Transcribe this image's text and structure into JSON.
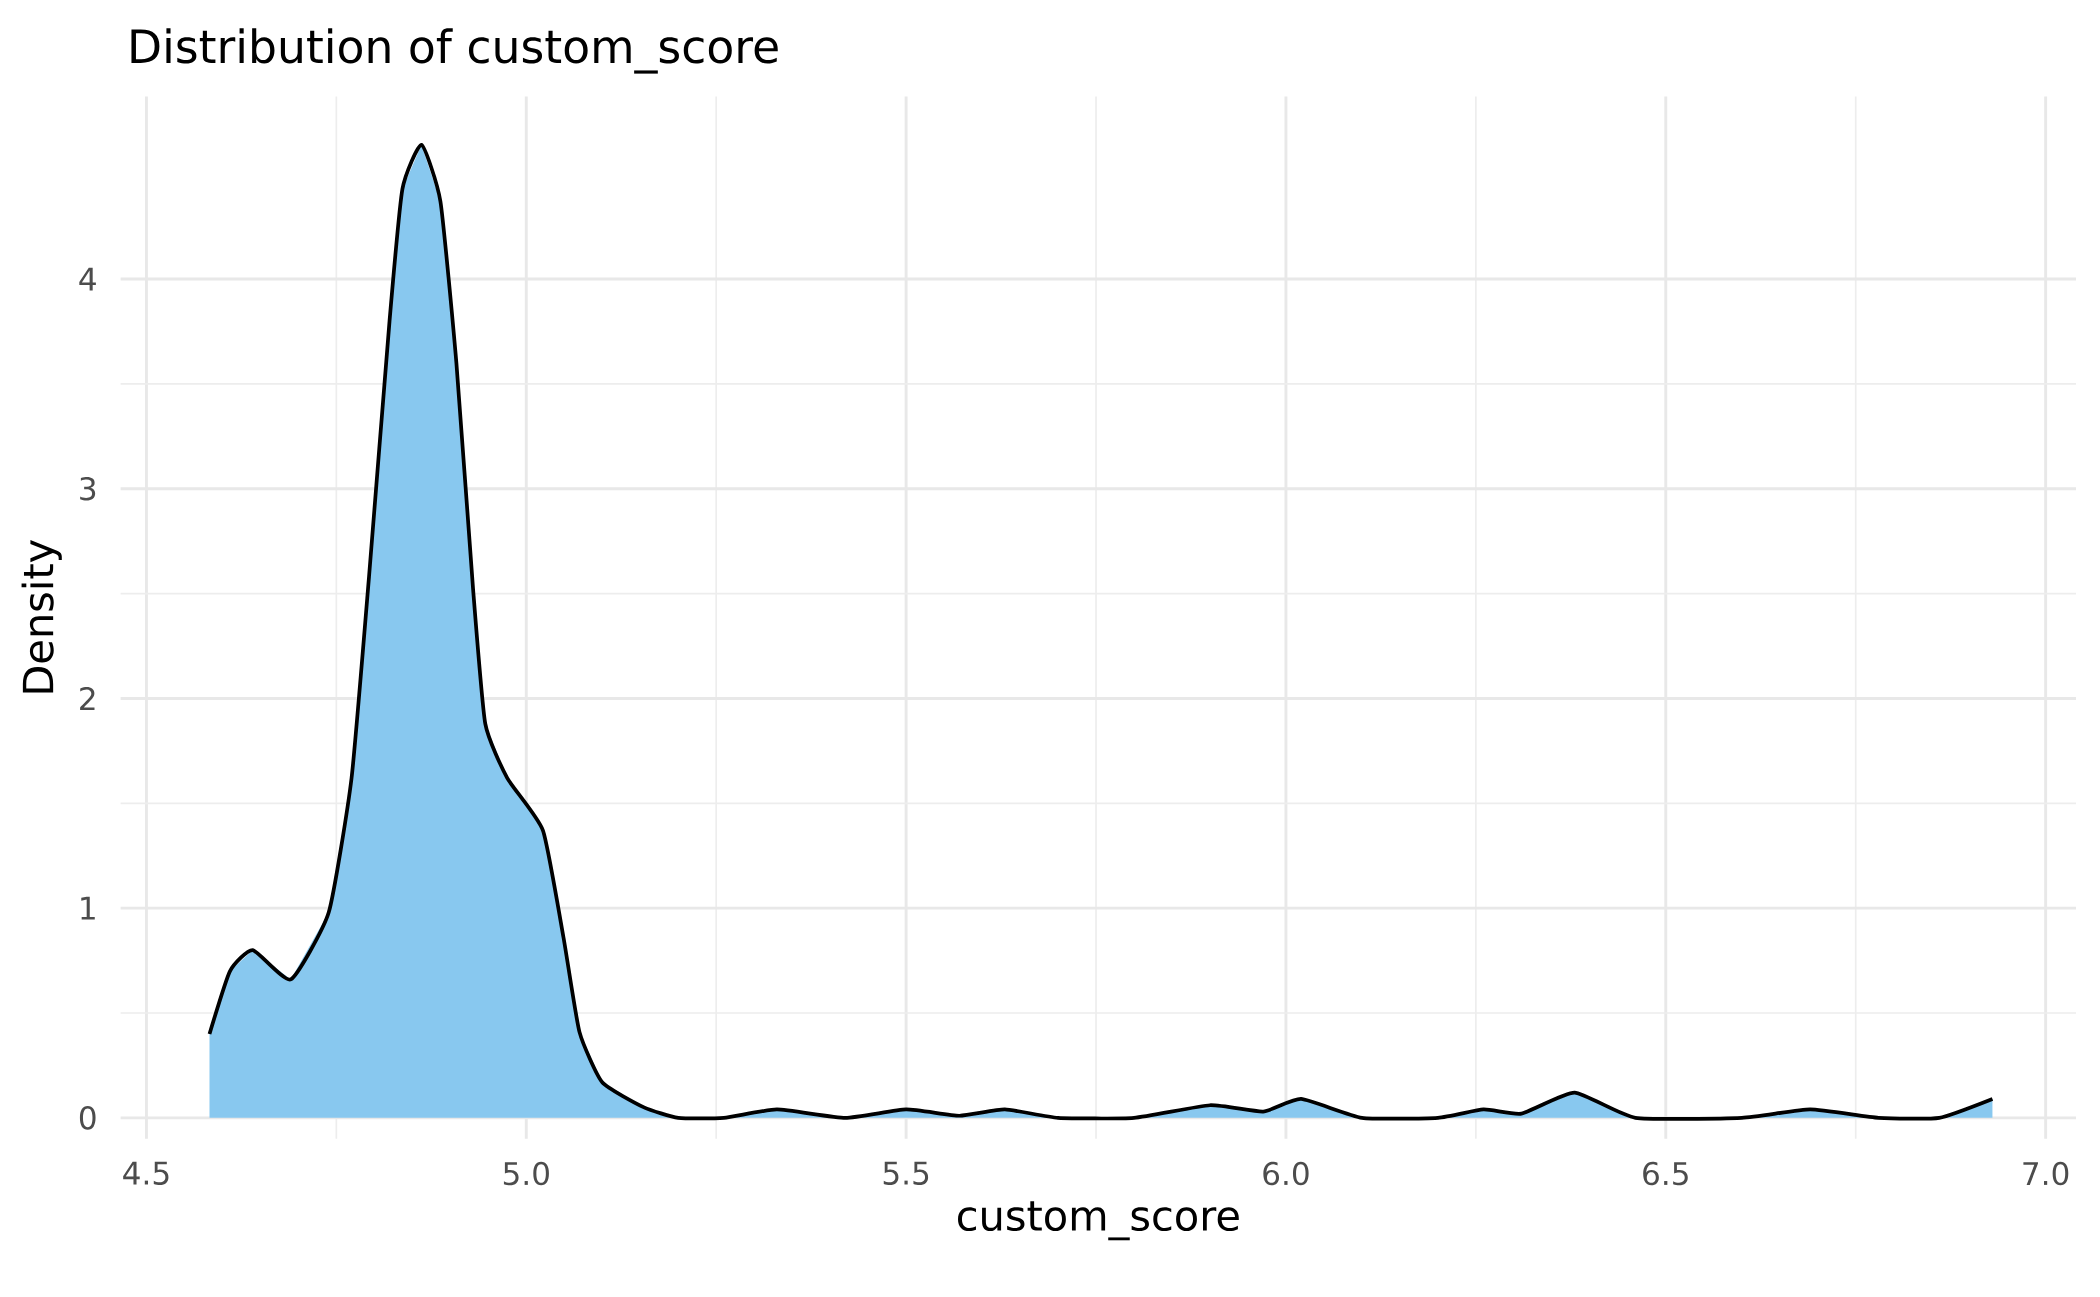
{
  "chart_data": {
    "type": "area",
    "title": "Distribution of custom_score",
    "xlabel": "custom_score",
    "ylabel": "Density",
    "xlim": [
      4.466,
      7.04
    ],
    "ylim": [
      -0.1,
      4.87
    ],
    "xticks": [
      4.5,
      {
        "value": 5,
        "label": "5.0"
      },
      5.5,
      {
        "value": 6,
        "label": "6.0"
      },
      6.5,
      {
        "value": 7,
        "label": "7.0"
      }
    ],
    "yticks": [
      0,
      1,
      2,
      3,
      4
    ],
    "grid": true,
    "series": [
      {
        "color": "#88c8ef",
        "x": [
          4.583,
          4.61,
          4.64,
          4.69,
          4.74,
          4.77,
          4.793,
          4.82,
          4.837,
          4.862,
          4.887,
          4.908,
          4.93,
          4.946,
          4.975,
          5.022,
          5.049,
          5.07,
          5.1,
          5.155,
          5.2,
          5.26,
          5.33,
          5.42,
          5.5,
          5.57,
          5.63,
          5.7,
          5.8,
          5.9,
          5.97,
          6.02,
          6.1,
          6.2,
          6.26,
          6.31,
          6.38,
          6.46,
          6.6,
          6.69,
          6.78,
          6.86,
          6.93
        ],
        "values": [
          0.4,
          0.7,
          0.8,
          0.66,
          0.98,
          1.62,
          2.58,
          3.8,
          4.43,
          4.64,
          4.37,
          3.6,
          2.52,
          1.88,
          1.62,
          1.37,
          0.86,
          0.41,
          0.17,
          0.05,
          0.0,
          0.0,
          0.04,
          0.0,
          0.04,
          0.01,
          0.04,
          0.0,
          0.0,
          0.06,
          0.03,
          0.09,
          0.0,
          0.0,
          0.04,
          0.02,
          0.12,
          0.0,
          0.0,
          0.04,
          0.0,
          0.0,
          0.09
        ]
      }
    ]
  }
}
